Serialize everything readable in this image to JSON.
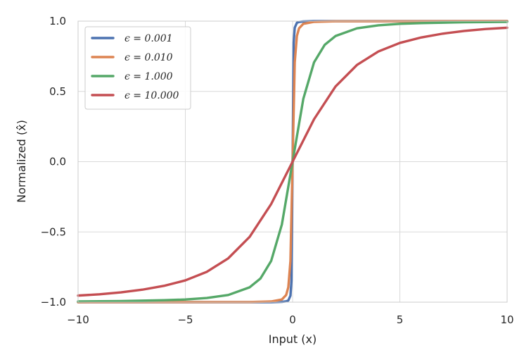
{
  "chart_data": {
    "type": "line",
    "xlabel": "Input (x)",
    "ylabel": "Normalized (x̂)",
    "xlim": [
      -10,
      10
    ],
    "ylim": [
      -1,
      1
    ],
    "x_ticks": [
      -10,
      -5,
      0,
      5,
      10
    ],
    "y_ticks": [
      -1.0,
      -0.5,
      0.0,
      0.5,
      1.0
    ],
    "x_tick_labels": [
      "−10",
      "−5",
      "0",
      "5",
      "10"
    ],
    "y_tick_labels": [
      "−1.0",
      "−0.5",
      "0.0",
      "0.5",
      "1.0"
    ],
    "grid": true,
    "legend_position": "top-left",
    "series": [
      {
        "name": "ϵ = 0.001",
        "color": "#4c72b0",
        "x": [
          -10,
          -2,
          -1,
          -0.5,
          -0.3,
          -0.2,
          -0.1,
          -0.05,
          0,
          0.05,
          0.1,
          0.2,
          0.3,
          0.5,
          1,
          2,
          10
        ],
        "y": [
          -1.0,
          -1.0,
          -1.0,
          -0.998,
          -0.994,
          -0.988,
          -0.954,
          -0.845,
          0.0,
          0.845,
          0.954,
          0.988,
          0.994,
          0.998,
          1.0,
          1.0,
          1.0
        ]
      },
      {
        "name": "ϵ = 0.010",
        "color": "#dd8452",
        "x": [
          -10,
          -3,
          -2,
          -1,
          -0.5,
          -0.3,
          -0.2,
          -0.1,
          0,
          0.1,
          0.2,
          0.3,
          0.5,
          1,
          2,
          3,
          10
        ],
        "y": [
          -1.0,
          -0.999,
          -0.999,
          -0.995,
          -0.981,
          -0.949,
          -0.894,
          -0.707,
          0.0,
          0.707,
          0.894,
          0.949,
          0.981,
          0.995,
          0.999,
          0.999,
          1.0
        ]
      },
      {
        "name": "ϵ = 1.000",
        "color": "#55a868",
        "x": [
          -10,
          -8,
          -6,
          -5,
          -4,
          -3,
          -2,
          -1.5,
          -1,
          -0.5,
          0,
          0.5,
          1,
          1.5,
          2,
          3,
          4,
          5,
          6,
          8,
          10
        ],
        "y": [
          -0.995,
          -0.992,
          -0.986,
          -0.981,
          -0.97,
          -0.949,
          -0.894,
          -0.832,
          -0.707,
          -0.447,
          0.0,
          0.447,
          0.707,
          0.832,
          0.894,
          0.949,
          0.97,
          0.981,
          0.986,
          0.992,
          0.995
        ]
      },
      {
        "name": "ϵ = 10.000",
        "color": "#c44e52",
        "x": [
          -10,
          -9,
          -8,
          -7,
          -6,
          -5,
          -4,
          -3,
          -2,
          -1,
          0,
          1,
          2,
          3,
          4,
          5,
          6,
          7,
          8,
          9,
          10
        ],
        "y": [
          -0.953,
          -0.944,
          -0.93,
          -0.911,
          -0.884,
          -0.845,
          -0.784,
          -0.688,
          -0.535,
          -0.302,
          0.0,
          0.302,
          0.535,
          0.688,
          0.784,
          0.845,
          0.884,
          0.911,
          0.93,
          0.944,
          0.953
        ]
      }
    ]
  }
}
